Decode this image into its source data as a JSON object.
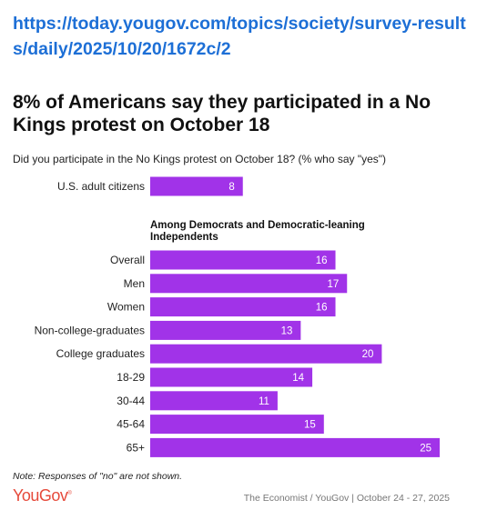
{
  "url": "https://today.yougov.com/topics/society/survey-results/daily/2025/10/20/1672c/2",
  "chart_data": {
    "type": "bar",
    "title": "8% of Americans say they participated in a No Kings protest on October 18",
    "subtitle": "Did you participate in the No Kings protest on October 18? (% who say \"yes\")",
    "bar_color": "#a133e8",
    "label_color": "#ffffff",
    "xlim": [
      0,
      25
    ],
    "top_group": {
      "categories": [
        "U.S. adult citizens"
      ],
      "values": [
        8
      ]
    },
    "group_heading": "Among Democrats and Democratic-leaning Independents",
    "group": {
      "categories": [
        "Overall",
        "Men",
        "Women",
        "Non-college-graduates",
        "College graduates",
        "18-29",
        "30-44",
        "45-64",
        "65+"
      ],
      "values": [
        16,
        17,
        16,
        13,
        20,
        14,
        11,
        15,
        25
      ]
    },
    "note": "Note: Responses of \"no\" are not shown."
  },
  "footer": {
    "logo": "YouGov",
    "source": "The Economist / YouGov | October 24 - 27, 2025"
  }
}
